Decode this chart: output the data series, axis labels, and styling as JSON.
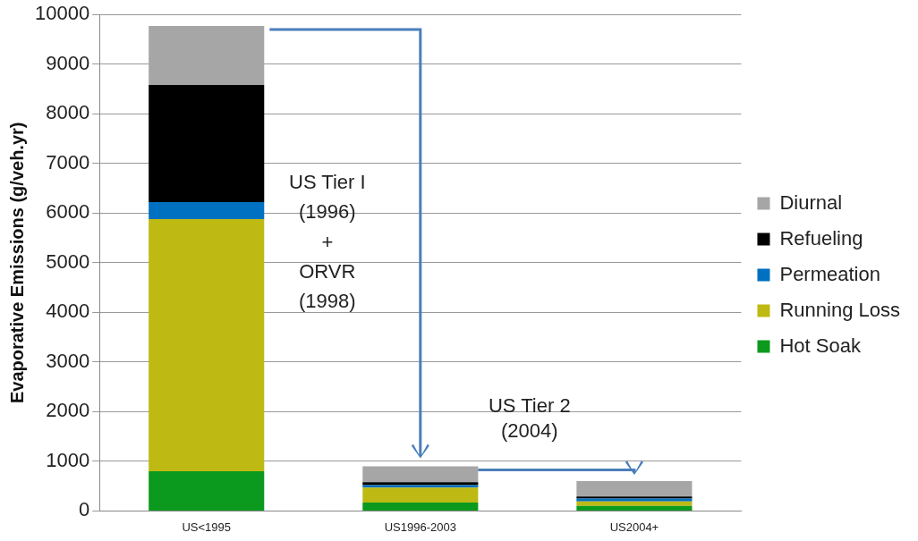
{
  "chart_data": {
    "type": "bar",
    "stacked": true,
    "ylabel": "Evaporative Emissions (g/veh.yr)",
    "categories": [
      "US<1995",
      "US1996-2003",
      "US2004+"
    ],
    "series": [
      {
        "name": "Hot Soak",
        "color": "#0c9a1e",
        "values": [
          800,
          170,
          100
        ]
      },
      {
        "name": "Running Loss",
        "color": "#bfb913",
        "values": [
          5080,
          300,
          90
        ]
      },
      {
        "name": "Permeation",
        "color": "#0070c0",
        "values": [
          340,
          50,
          60
        ]
      },
      {
        "name": "Refueling",
        "color": "#000000",
        "values": [
          2360,
          60,
          40
        ]
      },
      {
        "name": "Diurnal",
        "color": "#a6a6a6",
        "values": [
          1190,
          320,
          310
        ]
      }
    ],
    "ylim": [
      0,
      10000
    ],
    "yticks": [
      0,
      1000,
      2000,
      3000,
      4000,
      5000,
      6000,
      7000,
      8000,
      9000,
      10000
    ],
    "grid": "y",
    "legend": "right",
    "annotations": [
      "US Tier I\n(1996)\n+\nORVR\n(1998)",
      "US Tier 2\n(2004)"
    ]
  }
}
